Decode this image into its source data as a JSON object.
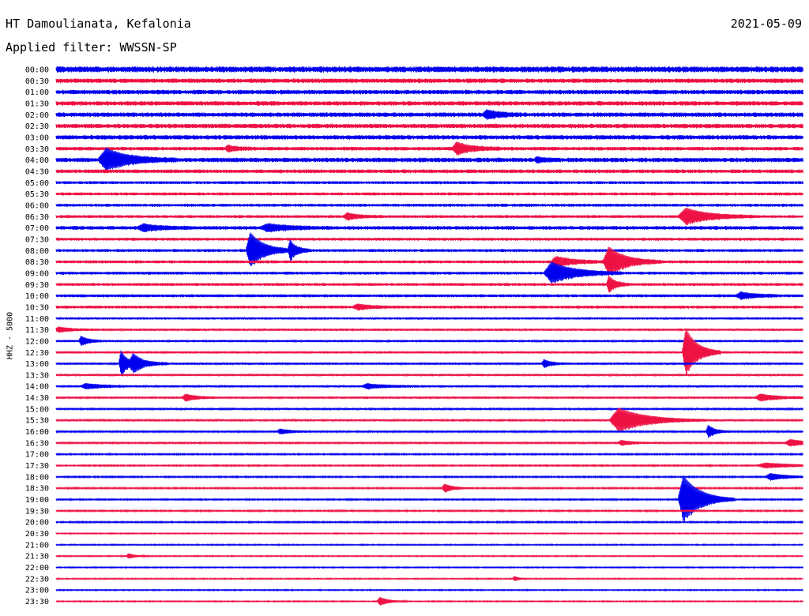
{
  "header": {
    "station": "HT Damoulianata, Kefalonia",
    "date": "2021-05-09",
    "filter": "Applied filter: WWSSN-SP"
  },
  "chart_data": {
    "type": "line",
    "ylabel": "HHZ - 5000",
    "colors": [
      "#0000ee",
      "#ee1144"
    ],
    "x_span_minutes": 30,
    "rows": [
      "00:00",
      "00:30",
      "01:00",
      "01:30",
      "02:00",
      "02:30",
      "03:00",
      "03:30",
      "04:00",
      "04:30",
      "05:00",
      "05:30",
      "06:00",
      "06:30",
      "07:00",
      "07:30",
      "08:00",
      "08:30",
      "09:00",
      "09:30",
      "10:00",
      "10:30",
      "11:00",
      "11:30",
      "12:00",
      "12:30",
      "13:00",
      "13:30",
      "14:00",
      "14:30",
      "15:00",
      "15:30",
      "16:00",
      "16:30",
      "17:00",
      "17:30",
      "18:00",
      "18:30",
      "19:00",
      "19:30",
      "20:00",
      "20:30",
      "21:00",
      "21:30",
      "22:00",
      "22:30",
      "23:00",
      "23:30"
    ],
    "noise": [
      4,
      3,
      3,
      3,
      3,
      3,
      3,
      2.5,
      3,
      2.5,
      2,
      2,
      2,
      2,
      2.5,
      2,
      2,
      2,
      2,
      2,
      2,
      2,
      1.5,
      1.5,
      1.5,
      1.5,
      1.5,
      1.5,
      1.5,
      1.5,
      1.2,
      1.2,
      1.2,
      1.2,
      1,
      1,
      1,
      1,
      1,
      1,
      1,
      0.8,
      0.8,
      0.8,
      0.8,
      0.8,
      0.8,
      0.8
    ],
    "events": [
      {
        "row": 4,
        "minute": 17.3,
        "amplitude": 5,
        "duration": 1.0
      },
      {
        "row": 7,
        "minute": 6.9,
        "amplitude": 3,
        "duration": 0.8
      },
      {
        "row": 7,
        "minute": 16.1,
        "amplitude": 7,
        "duration": 1.3
      },
      {
        "row": 8,
        "minute": 2.0,
        "amplitude": 13,
        "duration": 2.0
      },
      {
        "row": 8,
        "minute": 19.3,
        "amplitude": 3,
        "duration": 0.6
      },
      {
        "row": 13,
        "minute": 11.7,
        "amplitude": 4,
        "duration": 1.0
      },
      {
        "row": 13,
        "minute": 25.3,
        "amplitude": 10,
        "duration": 2.0
      },
      {
        "row": 14,
        "minute": 3.5,
        "amplitude": 4,
        "duration": 1.5
      },
      {
        "row": 14,
        "minute": 8.5,
        "amplitude": 4,
        "duration": 2.0
      },
      {
        "row": 16,
        "minute": 7.8,
        "amplitude": 22,
        "duration": 1.2
      },
      {
        "row": 16,
        "minute": 9.4,
        "amplitude": 12,
        "duration": 0.6
      },
      {
        "row": 17,
        "minute": 20.1,
        "amplitude": 6,
        "duration": 1.5
      },
      {
        "row": 17,
        "minute": 22.2,
        "amplitude": 18,
        "duration": 1.5
      },
      {
        "row": 18,
        "minute": 19.9,
        "amplitude": 13,
        "duration": 2.0
      },
      {
        "row": 19,
        "minute": 22.2,
        "amplitude": 10,
        "duration": 0.6
      },
      {
        "row": 20,
        "minute": 27.5,
        "amplitude": 4,
        "duration": 1.2
      },
      {
        "row": 21,
        "minute": 12.1,
        "amplitude": 3,
        "duration": 1.2
      },
      {
        "row": 23,
        "minute": 0.1,
        "amplitude": 3,
        "duration": 1.0
      },
      {
        "row": 24,
        "minute": 1.0,
        "amplitude": 6,
        "duration": 0.6
      },
      {
        "row": 25,
        "minute": 25.3,
        "amplitude": 30,
        "duration": 1.0
      },
      {
        "row": 26,
        "minute": 2.6,
        "amplitude": 16,
        "duration": 0.6
      },
      {
        "row": 26,
        "minute": 3.1,
        "amplitude": 10,
        "duration": 1.0
      },
      {
        "row": 26,
        "minute": 19.6,
        "amplitude": 5,
        "duration": 0.6
      },
      {
        "row": 28,
        "minute": 1.2,
        "amplitude": 3,
        "duration": 1.5
      },
      {
        "row": 28,
        "minute": 12.5,
        "amplitude": 3,
        "duration": 1.5
      },
      {
        "row": 29,
        "minute": 5.2,
        "amplitude": 4,
        "duration": 1.0
      },
      {
        "row": 29,
        "minute": 28.3,
        "amplitude": 4,
        "duration": 1.5
      },
      {
        "row": 31,
        "minute": 22.6,
        "amplitude": 15,
        "duration": 2.5
      },
      {
        "row": 32,
        "minute": 9.0,
        "amplitude": 3,
        "duration": 1.0
      },
      {
        "row": 32,
        "minute": 26.2,
        "amplitude": 8,
        "duration": 0.6
      },
      {
        "row": 33,
        "minute": 22.7,
        "amplitude": 3,
        "duration": 1.0
      },
      {
        "row": 33,
        "minute": 29.5,
        "amplitude": 4,
        "duration": 1.5
      },
      {
        "row": 35,
        "minute": 28.5,
        "amplitude": 3,
        "duration": 2.5
      },
      {
        "row": 36,
        "minute": 28.7,
        "amplitude": 4,
        "duration": 1.5
      },
      {
        "row": 37,
        "minute": 15.6,
        "amplitude": 5,
        "duration": 0.8
      },
      {
        "row": 38,
        "minute": 25.2,
        "amplitude": 30,
        "duration": 1.5
      },
      {
        "row": 43,
        "minute": 2.9,
        "amplitude": 3,
        "duration": 0.6
      },
      {
        "row": 45,
        "minute": 18.4,
        "amplitude": 3,
        "duration": 0.4
      },
      {
        "row": 47,
        "minute": 13.0,
        "amplitude": 5,
        "duration": 0.8
      }
    ]
  }
}
